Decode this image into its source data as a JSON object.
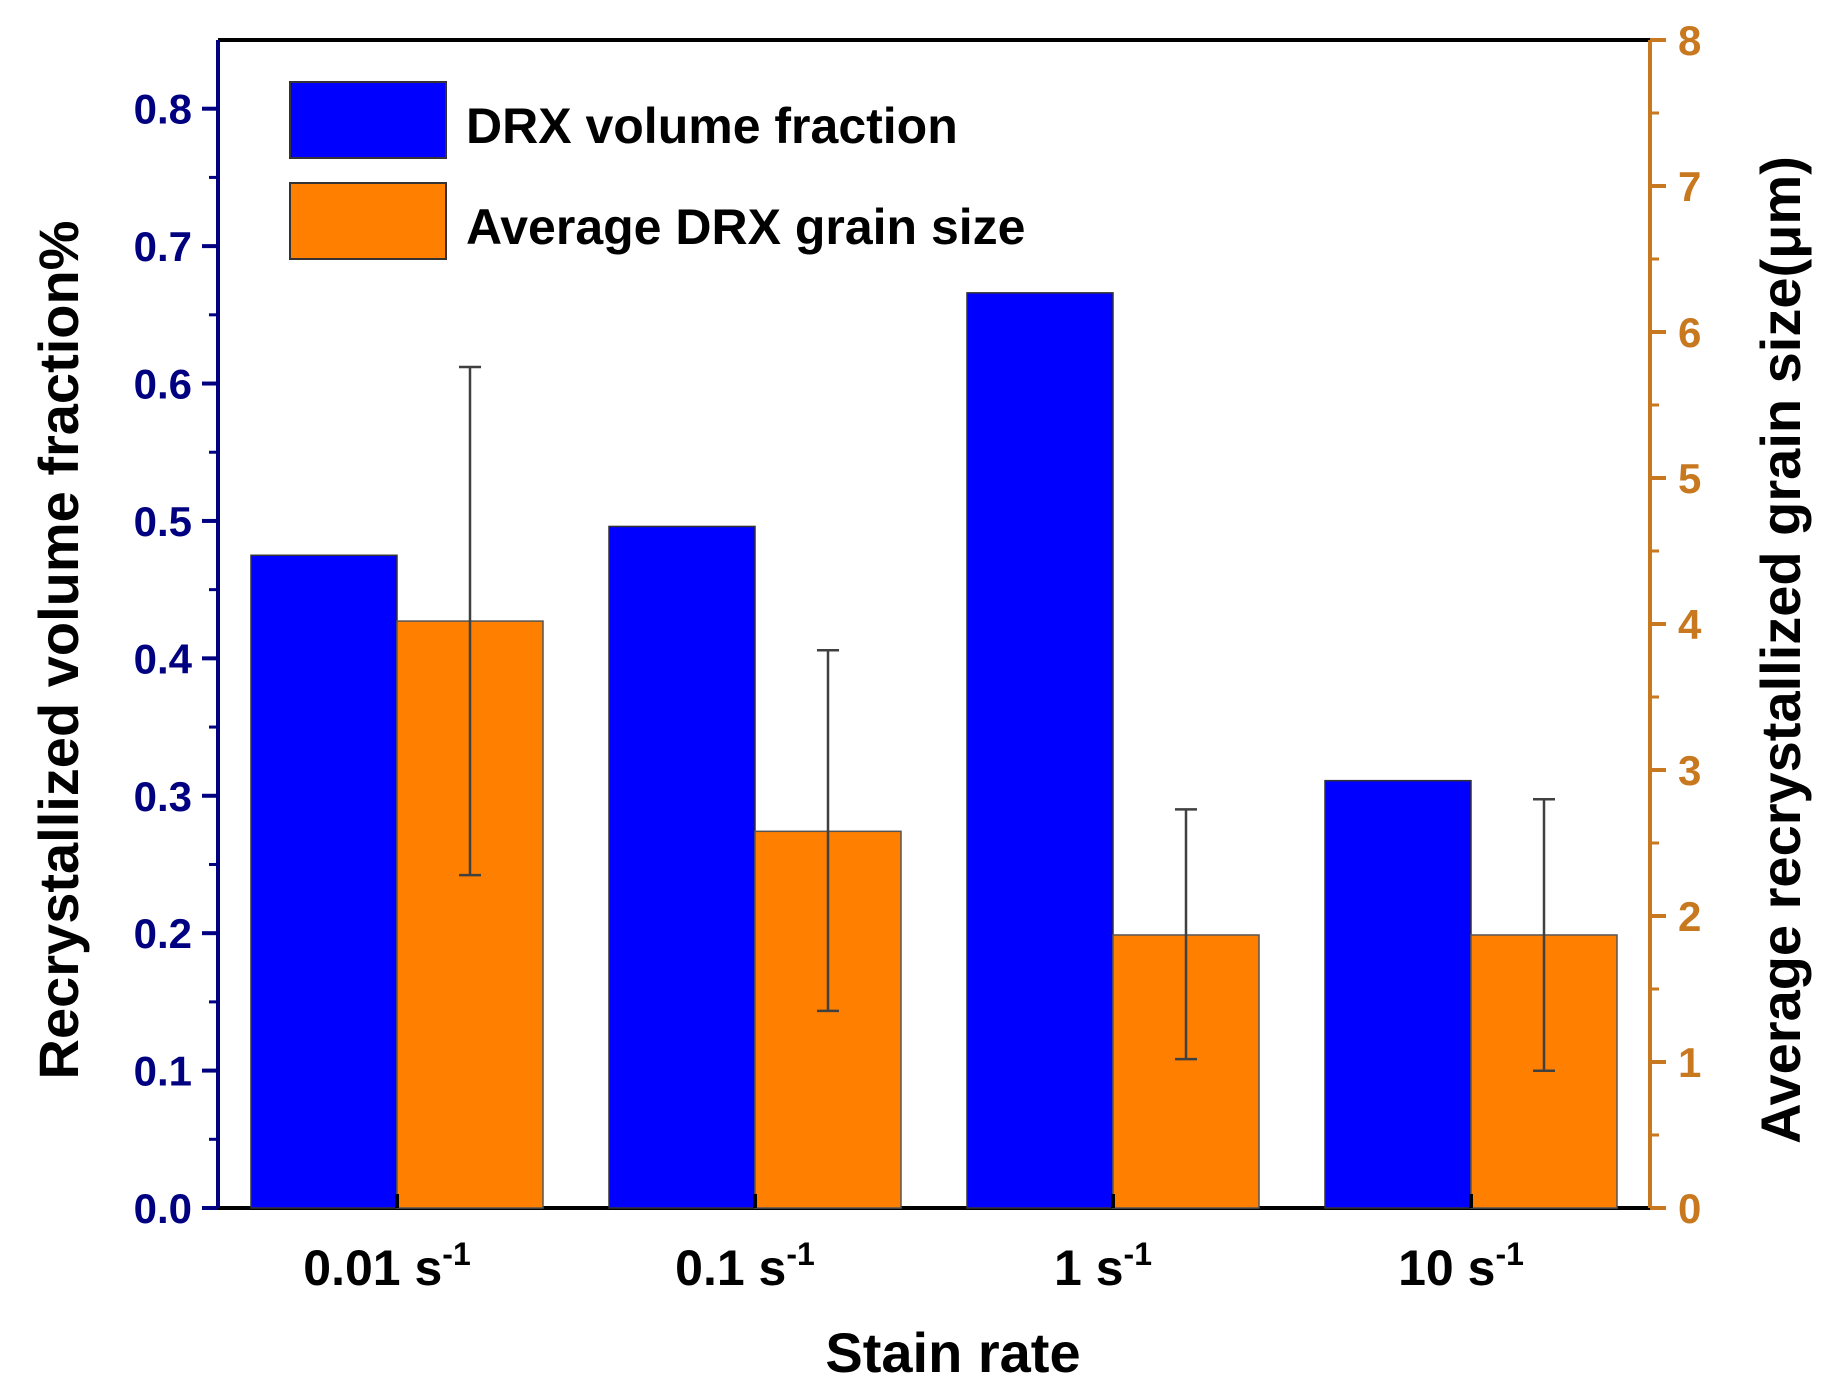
{
  "chart_data": {
    "type": "bar",
    "categories": [
      "0.01 s",
      "0.1 s",
      "1 s",
      "10 s"
    ],
    "category_superscript": "-1",
    "xlabel": "Stain rate",
    "ylabel_left": "Recrystallized volume fraction%",
    "ylabel_right": "Average recrystallized grain size(μm)",
    "ylim_left": [
      0,
      0.85
    ],
    "yticks_left": [
      "0.0",
      "0.1",
      "0.2",
      "0.3",
      "0.4",
      "0.5",
      "0.6",
      "0.7",
      "0.8"
    ],
    "ylim_right": [
      0,
      8
    ],
    "yticks_right": [
      "0",
      "1",
      "2",
      "3",
      "4",
      "5",
      "6",
      "7",
      "8"
    ],
    "series": [
      {
        "name": "DRX volume fraction",
        "axis": "left",
        "color": "#0000ff",
        "values": [
          0.475,
          0.496,
          0.666,
          0.311
        ]
      },
      {
        "name": "Average DRX grain size",
        "axis": "right",
        "color": "#ff8000",
        "values": [
          4.02,
          2.58,
          1.87,
          1.87
        ],
        "error_low": [
          2.28,
          1.35,
          1.02,
          0.94
        ],
        "error_high": [
          5.76,
          3.82,
          2.73,
          2.8
        ]
      }
    ],
    "legend_position": "top-left",
    "colors": {
      "left_axis": "#000080",
      "right_axis": "#c8781e",
      "frame": "#000000",
      "errorbar": "#404040"
    }
  }
}
